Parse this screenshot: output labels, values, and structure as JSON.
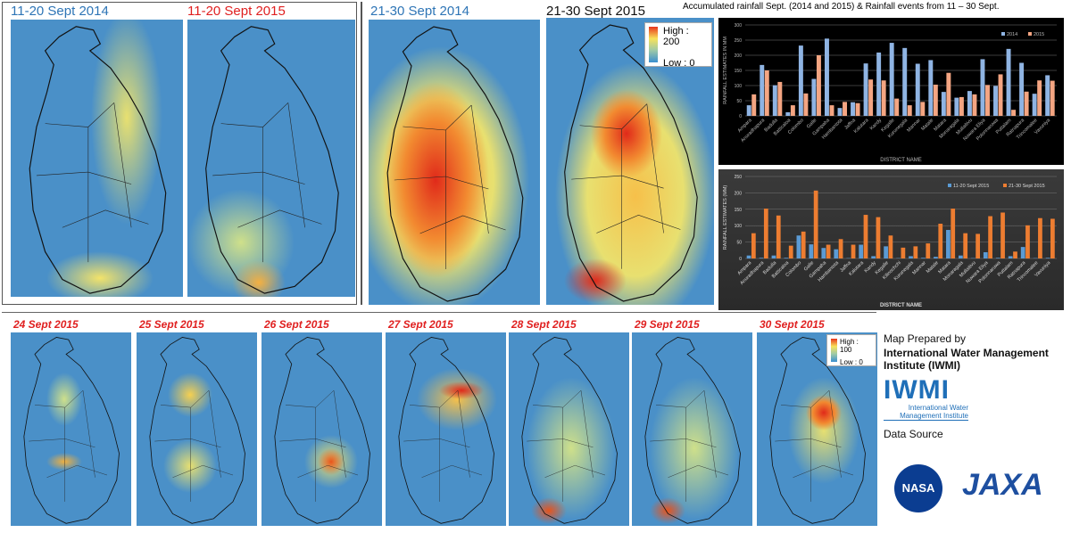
{
  "top_left": {
    "title_2014": "11-20 Sept 2014",
    "title_2015": "11-20 Sept 2015"
  },
  "top_mid": {
    "title_2014": "21-30 Sept 2014",
    "title_2015": "21-30 Sept 2015",
    "legend_high": "High : 200",
    "legend_low": "Low : 0"
  },
  "top_right": {
    "title": "Accumulated rainfall Sept. (2014 and 2015) & Rainfall events from 11 – 30 Sept."
  },
  "daily": {
    "titles": [
      "24 Sept 2015",
      "25 Sept 2015",
      "26 Sept 2015",
      "27 Sept 2015",
      "28 Sept 2015",
      "29 Sept 2015",
      "30 Sept 2015"
    ],
    "legend_high": "High : 100",
    "legend_low": "Low : 0"
  },
  "credits": {
    "prepared_by": "Map Prepared by",
    "org": "International Water Management Institute (IWMI)",
    "logo_text": "IWMI",
    "logo_sub": "International Water Management Institute",
    "data_source": "Data Source",
    "nasa": "NASA",
    "jaxa": "JAXA"
  },
  "colors": {
    "map_low": "#3b8fd0",
    "map_mid": "#f8e25a",
    "map_high": "#e8341c"
  },
  "chart_data": [
    {
      "type": "bar",
      "xlabel": "DISTRICT NAME",
      "ylabel": "RAINFALL ESTIMATES IN MM",
      "ylim": [
        0,
        300
      ],
      "yticks": [
        0,
        50,
        100,
        150,
        200,
        250,
        300
      ],
      "grid": true,
      "legend": "top-right",
      "categories": [
        "Ampara",
        "Anuradhapura",
        "Badulla",
        "Batticaloa",
        "Colombo",
        "Galle",
        "Gampaha",
        "Hambantota",
        "Jaffna",
        "Kalutara",
        "Kandy",
        "Kegalle",
        "Kurunegala",
        "Mannar",
        "Matale",
        "Matara",
        "Monaragala",
        "Mullaitivu",
        "Nuwara Eliya",
        "Polonnaruwa",
        "Puttalam",
        "Ratnapura",
        "Trincomalee",
        "Vavuniya"
      ],
      "series": [
        {
          "name": "2014",
          "color": "#8fb4e3",
          "values": [
            35,
            168,
            101,
            12,
            232,
            122,
            255,
            26,
            45,
            173,
            209,
            241,
            224,
            172,
            184,
            79,
            60,
            82,
            187,
            99,
            221,
            175,
            73,
            134
          ]
        },
        {
          "name": "2015",
          "color": "#f4a582",
          "values": [
            71,
            150,
            112,
            35,
            74,
            200,
            35,
            46,
            42,
            120,
            117,
            57,
            35,
            46,
            103,
            142,
            62,
            71,
            102,
            137,
            20,
            80,
            117,
            116
          ]
        }
      ]
    },
    {
      "type": "bar",
      "xlabel": "DISTRICT NAME",
      "ylabel": "RAINFALL ESTIMATES (MM)",
      "ylim": [
        0,
        250
      ],
      "yticks": [
        0,
        50,
        100,
        150,
        200,
        250
      ],
      "grid": true,
      "legend": "top-right",
      "categories": [
        "Ampara",
        "Anuradhapura",
        "Badulla",
        "Batticaloa",
        "Colombo",
        "Galle",
        "Gampaha",
        "Hambantota",
        "Jaffna",
        "Kalutara",
        "Kandy",
        "Kegalle",
        "Kilinochchi",
        "Kurunegala",
        "Mannar",
        "Matale",
        "Matara",
        "Monaragala",
        "Mullaitivu",
        "Nuwara Eliya",
        "Polonnaruwa",
        "Puttalam",
        "Ratnapura",
        "Trincomalee",
        "Vavuniya"
      ],
      "series": [
        {
          "name": "11-20 Sept 2015",
          "color": "#5b9bd5",
          "values": [
            9,
            2,
            9,
            2,
            70,
            43,
            32,
            28,
            1,
            42,
            7,
            37,
            1,
            7,
            2,
            5,
            87,
            9,
            1,
            19,
            2,
            7,
            35,
            1,
            2
          ]
        },
        {
          "name": "21-30 Sept 2015",
          "color": "#ed7d31",
          "values": [
            77,
            152,
            131,
            39,
            82,
            207,
            42,
            59,
            42,
            133,
            126,
            70,
            33,
            37,
            46,
            106,
            152,
            77,
            75,
            129,
            140,
            21,
            101,
            123,
            121
          ]
        }
      ]
    }
  ]
}
